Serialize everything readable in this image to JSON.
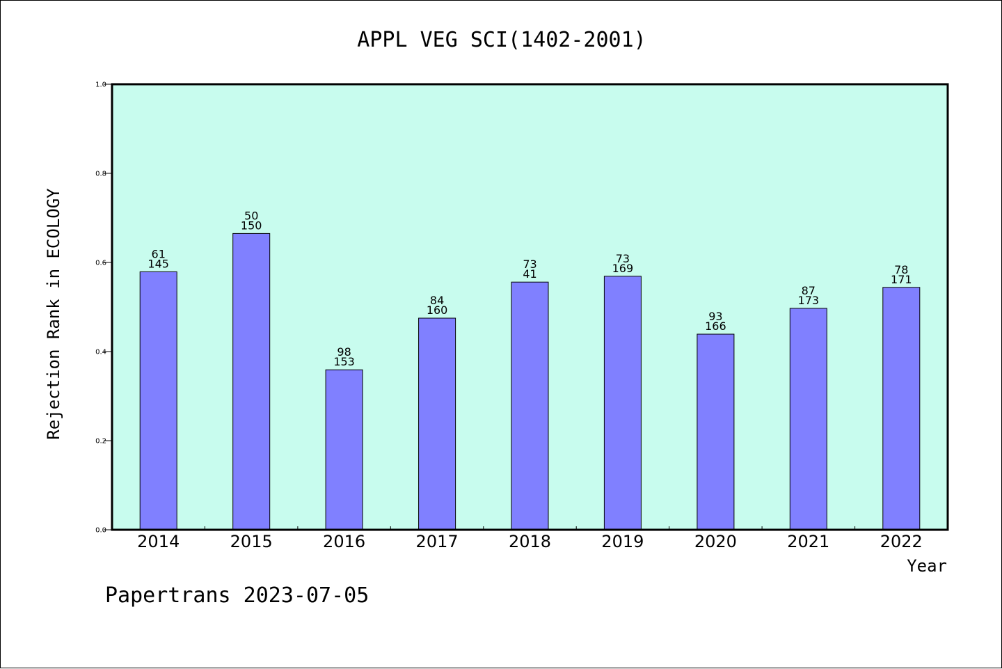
{
  "chart_data": {
    "type": "bar",
    "title": "APPL VEG SCI(1402-2001)",
    "xlabel": "Year",
    "ylabel": "Rejection Rank in ECOLOGY",
    "ylim": [
      0,
      1.0
    ],
    "yticks": [
      "0.0",
      "0.2",
      "0.4",
      "0.6",
      "0.8",
      "1.0"
    ],
    "grid": false,
    "categories": [
      "2014",
      "2015",
      "2016",
      "2017",
      "2018",
      "2019",
      "2020",
      "2021",
      "2022"
    ],
    "values": [
      0.579,
      0.665,
      0.359,
      0.475,
      0.556,
      0.569,
      0.439,
      0.497,
      0.544
    ],
    "annotations": [
      {
        "top": "61",
        "bottom": "145"
      },
      {
        "top": "50",
        "bottom": "150"
      },
      {
        "top": "98",
        "bottom": "153"
      },
      {
        "top": "84",
        "bottom": "160"
      },
      {
        "top": "73",
        "bottom": "41"
      },
      {
        "top": "73",
        "bottom": "169"
      },
      {
        "top": "93",
        "bottom": "166"
      },
      {
        "top": "87",
        "bottom": "173"
      },
      {
        "top": "78",
        "bottom": "171"
      }
    ],
    "colors": {
      "plot_background": "#c8fcee",
      "bar_fill": "#8080ff",
      "bar_stroke": "#000000",
      "axis": "#000000"
    }
  },
  "footer": {
    "text": "Papertrans 2023-07-05"
  }
}
